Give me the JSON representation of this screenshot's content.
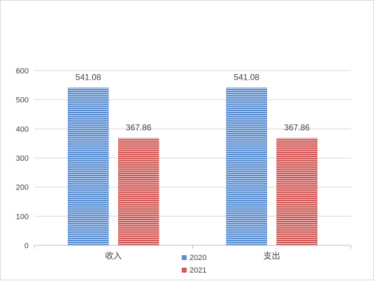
{
  "chart_data": {
    "type": "bar",
    "categories": [
      "收入",
      "支出"
    ],
    "series": [
      {
        "name": "2020",
        "values": [
          541.08,
          541.08
        ],
        "color": "#5b8fd1"
      },
      {
        "name": "2021",
        "values": [
          367.86,
          367.86
        ],
        "color": "#d05a57"
      }
    ],
    "title": "",
    "xlabel": "",
    "ylabel": "",
    "ylim": [
      0,
      600
    ],
    "yticks": [
      0,
      100,
      200,
      300,
      400,
      500,
      600
    ],
    "grid": true,
    "legend_position": "bottom",
    "data_labels": [
      "541.08",
      "367.86",
      "541.08",
      "367.86"
    ]
  }
}
